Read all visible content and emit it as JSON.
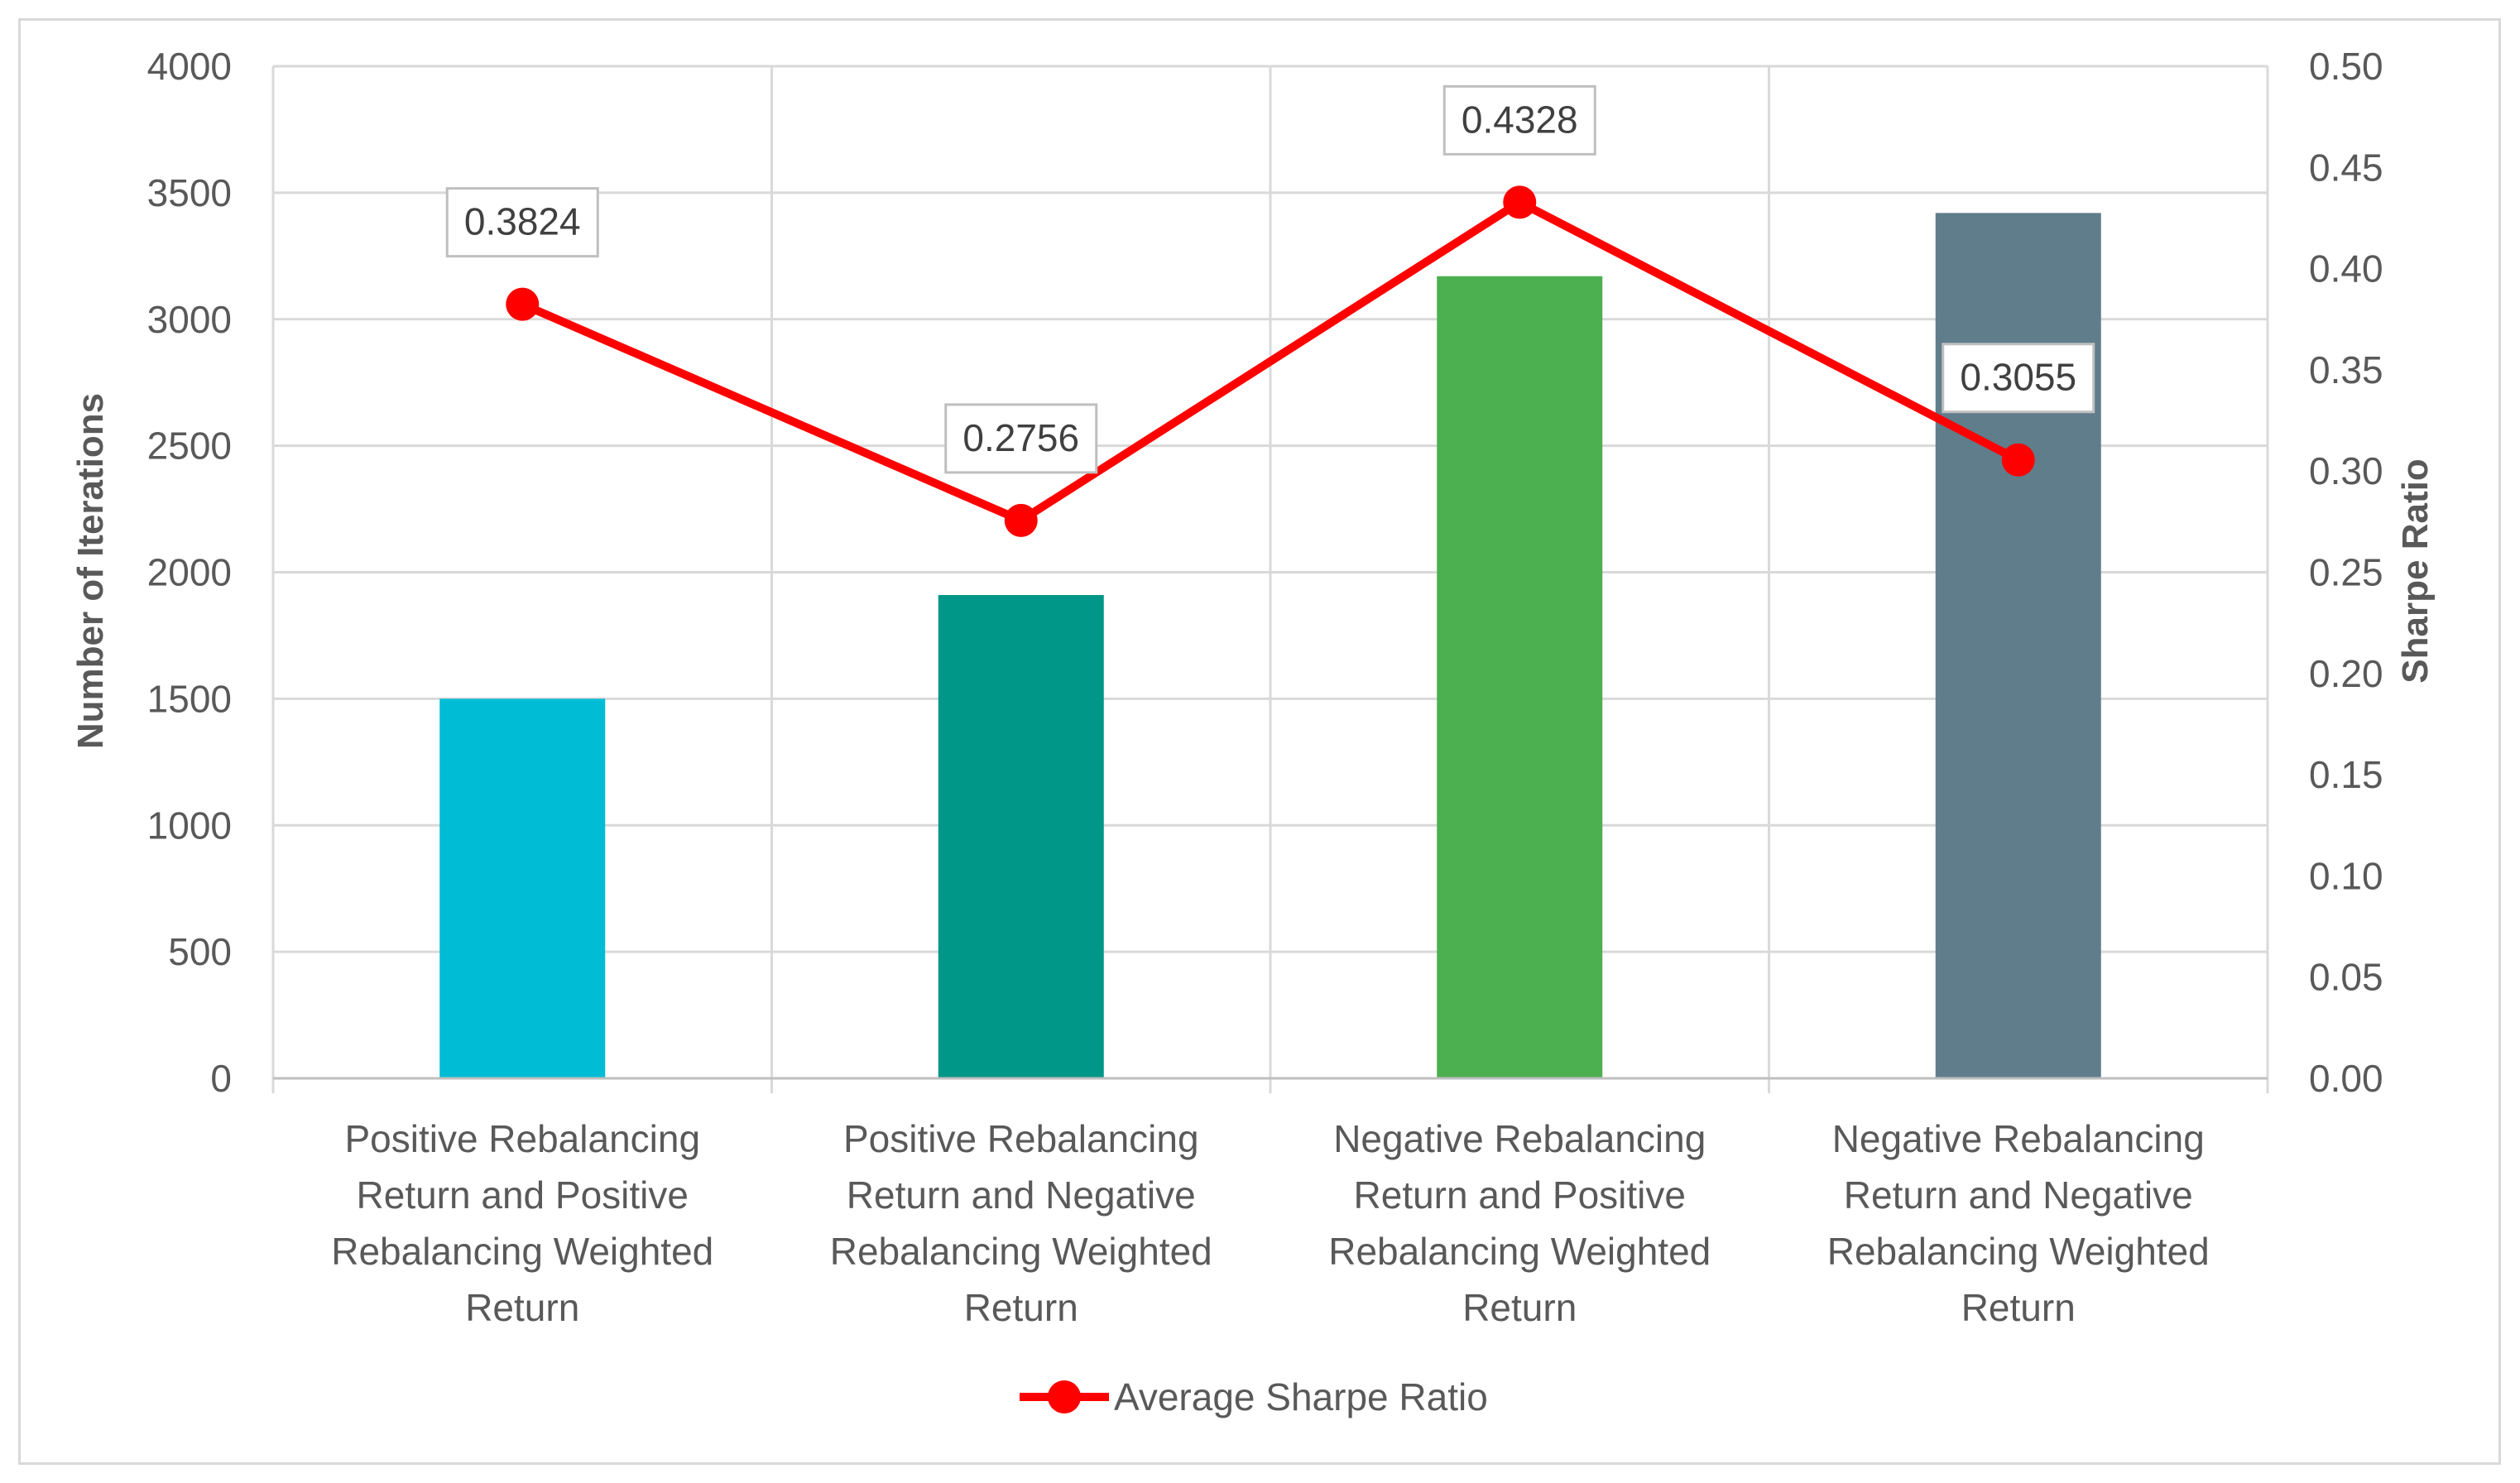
{
  "chart_data": {
    "type": "bar",
    "categories": [
      [
        "Positive Rebalancing",
        "Return and Positive",
        "Rebalancing Weighted",
        "Return"
      ],
      [
        "Positive Rebalancing",
        "Return and Negative",
        "Rebalancing Weighted",
        "Return"
      ],
      [
        "Negative Rebalancing",
        "Return and Positive",
        "Rebalancing Weighted",
        "Return"
      ],
      [
        "Negative Rebalancing",
        "Return and Negative",
        "Rebalancing Weighted",
        "Return"
      ]
    ],
    "bars": {
      "name": "Number of Iterations",
      "values": [
        1500,
        1910,
        3170,
        3420
      ],
      "colors": [
        "#00bcd4",
        "#009688",
        "#4caf50",
        "#607d8b"
      ]
    },
    "line": {
      "name": "Average Sharpe Ratio",
      "values": [
        0.3824,
        0.2756,
        0.4328,
        0.3055
      ],
      "labels": [
        "0.3824",
        "0.2756",
        "0.4328",
        "0.3055"
      ],
      "color": "#ff0000"
    },
    "y_left": {
      "label": "Number of Iterations",
      "range": [
        0,
        4000
      ],
      "ticks": [
        "0",
        "500",
        "1000",
        "1500",
        "2000",
        "2500",
        "3000",
        "3500",
        "4000"
      ]
    },
    "y_right": {
      "label": "Sharpe Ratio",
      "range": [
        0,
        0.5
      ],
      "ticks": [
        "0.00",
        "0.05",
        "0.10",
        "0.15",
        "0.20",
        "0.25",
        "0.30",
        "0.35",
        "0.40",
        "0.45",
        "0.50"
      ]
    },
    "legend": {
      "position": "bottom",
      "entries": [
        "Average Sharpe Ratio"
      ]
    },
    "grid": true
  }
}
